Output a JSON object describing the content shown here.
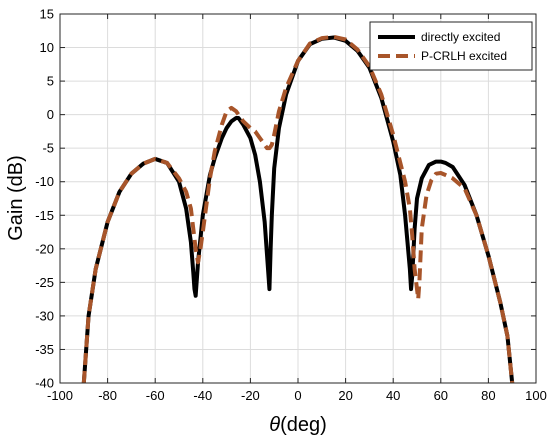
{
  "chart_data": {
    "type": "line",
    "title": "",
    "xlabel_symbol": "θ",
    "xlabel_unit": "(deg)",
    "ylabel": "Gain (dB)",
    "xlim": [
      -100,
      100
    ],
    "ylim": [
      -40,
      15
    ],
    "xticks": [
      -100,
      -80,
      -60,
      -40,
      -20,
      0,
      20,
      40,
      60,
      80,
      100
    ],
    "yticks": [
      -40,
      -35,
      -30,
      -25,
      -20,
      -15,
      -10,
      -5,
      0,
      5,
      10,
      15
    ],
    "grid": true,
    "legend_position": "top-right",
    "series": [
      {
        "name": "directly excited",
        "color": "#000000",
        "style": "solid",
        "x": [
          -90,
          -88,
          -85,
          -80,
          -75,
          -70,
          -65,
          -60,
          -55,
          -50,
          -47,
          -45,
          -44,
          -43.5,
          -43,
          -42,
          -40,
          -37,
          -35,
          -32,
          -30,
          -28,
          -26,
          -25,
          -23,
          -20,
          -18,
          -16,
          -14,
          -13,
          -12,
          -11.5,
          -11,
          -10,
          -8,
          -5,
          0,
          5,
          10,
          15,
          20,
          25,
          30,
          35,
          40,
          43,
          45,
          46,
          47,
          47.5,
          48,
          49,
          50,
          52,
          55,
          58,
          60,
          62,
          65,
          70,
          75,
          80,
          85,
          88,
          90
        ],
        "y": [
          -40,
          -30,
          -23,
          -16,
          -11.5,
          -8.8,
          -7.3,
          -6.6,
          -7.2,
          -10,
          -14,
          -19,
          -23.5,
          -26,
          -27,
          -22,
          -15,
          -9,
          -6.5,
          -3.5,
          -2,
          -1,
          -0.5,
          -0.5,
          -1.5,
          -3.5,
          -6,
          -10,
          -16,
          -21,
          -26,
          -20,
          -15,
          -8,
          -2,
          3,
          8,
          10.5,
          11.3,
          11.5,
          11,
          9.5,
          7,
          2.5,
          -4,
          -9,
          -15,
          -19,
          -23,
          -26,
          -24,
          -17,
          -12.5,
          -9.5,
          -7.5,
          -7,
          -7,
          -7.2,
          -7.8,
          -10.5,
          -15,
          -21,
          -28,
          -33,
          -40
        ]
      },
      {
        "name": "P-CRLH excited",
        "color": "#a8552a",
        "style": "dashed",
        "x": [
          -90,
          -88,
          -85,
          -80,
          -75,
          -70,
          -65,
          -60,
          -55,
          -50,
          -47,
          -45,
          -44,
          -43,
          -42,
          -41,
          -40,
          -37,
          -35,
          -32,
          -30,
          -28,
          -26,
          -25,
          -23,
          -20,
          -18,
          -16,
          -14,
          -13,
          -12,
          -11,
          -10,
          -8,
          -5,
          0,
          5,
          10,
          15,
          20,
          25,
          30,
          35,
          40,
          45,
          47,
          48,
          49,
          50,
          50.5,
          51,
          52,
          54,
          56,
          58,
          60,
          62,
          65,
          70,
          75,
          80,
          85,
          88,
          90
        ],
        "y": [
          -40,
          -30,
          -23,
          -16,
          -11.5,
          -8.8,
          -7.3,
          -6.6,
          -7.2,
          -9.5,
          -11.5,
          -14,
          -17,
          -20,
          -22,
          -20,
          -17.5,
          -9.5,
          -5.5,
          -1.5,
          0.5,
          1,
          0.5,
          0,
          -1,
          -2,
          -2.5,
          -3.5,
          -4.5,
          -5,
          -5,
          -4.5,
          -3,
          0.5,
          4,
          8,
          10.6,
          11.4,
          11.6,
          11.2,
          9.7,
          7.2,
          3,
          -3,
          -10,
          -14,
          -18,
          -23,
          -26,
          -27.5,
          -25,
          -17,
          -12,
          -9.8,
          -8.8,
          -8.7,
          -9,
          -9.5,
          -11,
          -15,
          -21,
          -28,
          -33,
          -40
        ]
      }
    ]
  }
}
